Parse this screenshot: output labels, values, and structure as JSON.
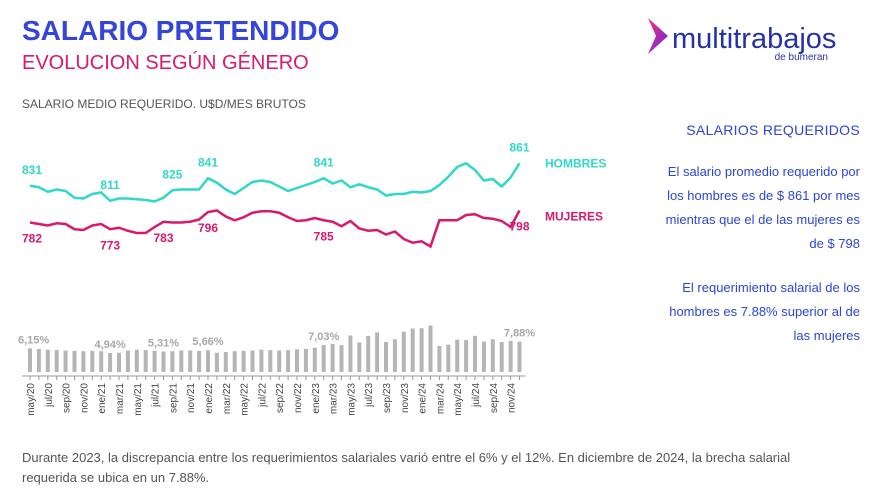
{
  "header": {
    "title": "SALARIO PRETENDIDO",
    "subtitle": "EVOLUCION SEGÚN GÉNERO",
    "logo": {
      "name": "multitrabajos",
      "tagline": "de bumeran"
    }
  },
  "chart_data": [
    {
      "type": "line",
      "title": "SALARIO MEDIO REQUERIDO. U$D/MES BRUTOS",
      "ylim": [
        732,
        892
      ],
      "series": [
        {
          "name": "HOMBRES",
          "color": "#2fd8c8",
          "values": [
            831,
            829,
            823,
            826,
            824,
            815,
            814,
            820,
            822,
            811,
            814,
            814,
            813,
            812,
            810,
            815,
            825,
            826,
            826,
            826,
            841,
            835,
            826,
            820,
            828,
            836,
            838,
            836,
            830,
            824,
            828,
            832,
            836,
            841,
            834,
            838,
            829,
            833,
            829,
            826,
            818,
            820,
            820,
            823,
            822,
            824,
            832,
            843,
            856,
            861,
            852,
            838,
            840,
            830,
            842,
            861
          ],
          "value_labels": [
            "831",
            null,
            null,
            null,
            null,
            null,
            null,
            null,
            null,
            "811",
            null,
            null,
            null,
            null,
            null,
            null,
            "825",
            null,
            null,
            null,
            "841",
            null,
            null,
            null,
            null,
            null,
            null,
            null,
            null,
            null,
            null,
            null,
            null,
            "841",
            null,
            null,
            null,
            null,
            null,
            null,
            null,
            null,
            null,
            null,
            null,
            null,
            null,
            null,
            null,
            null,
            null,
            null,
            null,
            null,
            null,
            "861"
          ]
        },
        {
          "name": "MUJERES",
          "color": "#d8196c",
          "values": [
            782,
            780,
            778,
            781,
            780,
            773,
            772,
            778,
            780,
            773,
            775,
            771,
            768,
            768,
            776,
            783,
            782,
            782,
            783,
            786,
            796,
            798,
            790,
            785,
            789,
            795,
            797,
            797,
            795,
            789,
            784,
            785,
            788,
            785,
            783,
            777,
            784,
            774,
            771,
            772,
            766,
            770,
            760,
            755,
            757,
            750,
            785,
            785,
            785,
            792,
            793,
            788,
            787,
            784,
            776,
            798
          ],
          "value_labels": [
            "782",
            null,
            null,
            null,
            null,
            null,
            null,
            null,
            null,
            "773",
            null,
            null,
            null,
            null,
            null,
            "783",
            null,
            null,
            null,
            null,
            "796",
            null,
            null,
            null,
            null,
            null,
            null,
            null,
            null,
            null,
            null,
            null,
            null,
            "785",
            null,
            null,
            null,
            null,
            null,
            null,
            null,
            null,
            null,
            null,
            null,
            null,
            null,
            null,
            null,
            null,
            null,
            null,
            null,
            null,
            null,
            "798"
          ]
        }
      ]
    },
    {
      "type": "bar",
      "color": "#b5b5b5",
      "ylim": [
        0,
        13
      ],
      "categories": [
        "may/20",
        null,
        "jul/20",
        null,
        "sep/20",
        null,
        "nov/20",
        null,
        "ene/21",
        null,
        "mar/21",
        null,
        "may/21",
        null,
        "jul/21",
        null,
        "sep/21",
        null,
        "nov/21",
        null,
        "ene/22",
        null,
        "mar/22",
        null,
        "may/22",
        null,
        "jul/22",
        null,
        "sep/22",
        null,
        "nov/22",
        null,
        "ene/23",
        null,
        "mar/23",
        null,
        "may/23",
        null,
        "jul/23",
        null,
        "sep/23",
        null,
        "nov/23",
        null,
        "ene/24",
        null,
        "mar/24",
        null,
        "may/24",
        null,
        "jul/24",
        null,
        "sep/24",
        null,
        "nov/24",
        null
      ],
      "values": [
        6.15,
        6.0,
        5.8,
        5.7,
        5.6,
        5.5,
        5.4,
        5.5,
        5.4,
        4.94,
        5.0,
        5.6,
        5.8,
        5.7,
        5.5,
        5.31,
        5.4,
        5.6,
        5.6,
        5.5,
        5.66,
        5.0,
        5.2,
        5.4,
        5.5,
        5.6,
        5.8,
        5.7,
        5.6,
        5.7,
        5.9,
        6.0,
        6.3,
        7.03,
        7.3,
        7.0,
        9.5,
        7.7,
        9.4,
        10.3,
        7.8,
        8.5,
        10.5,
        11.3,
        11.4,
        12.1,
        6.8,
        7.1,
        8.4,
        8.3,
        9.4,
        7.9,
        8.5,
        7.8,
        8.1,
        7.88
      ],
      "value_labels": [
        "6,15%",
        null,
        null,
        null,
        null,
        null,
        null,
        null,
        null,
        "4,94%",
        null,
        null,
        null,
        null,
        null,
        "5,31%",
        null,
        null,
        null,
        null,
        "5,66%",
        null,
        null,
        null,
        null,
        null,
        null,
        null,
        null,
        null,
        null,
        null,
        null,
        "7,03%",
        null,
        null,
        null,
        null,
        null,
        null,
        null,
        null,
        null,
        null,
        null,
        null,
        null,
        null,
        null,
        null,
        null,
        null,
        null,
        null,
        null,
        "7,88%"
      ]
    }
  ],
  "sidebar": {
    "title": "SALARIOS REQUERIDOS",
    "paragraphs": [
      "El salario promedio requerido por los hombres es de $ 861 por mes mientras que el de las mujeres es de $ 798",
      "El requerimiento salarial de los hombres es 7.88% superior al de las mujeres"
    ]
  },
  "footer": "Durante 2023, la discrepancia entre los requerimientos salariales varió entre el 6% y el 12%. En diciembre de 2024, la brecha salarial requerida se ubica en un 7.88%."
}
